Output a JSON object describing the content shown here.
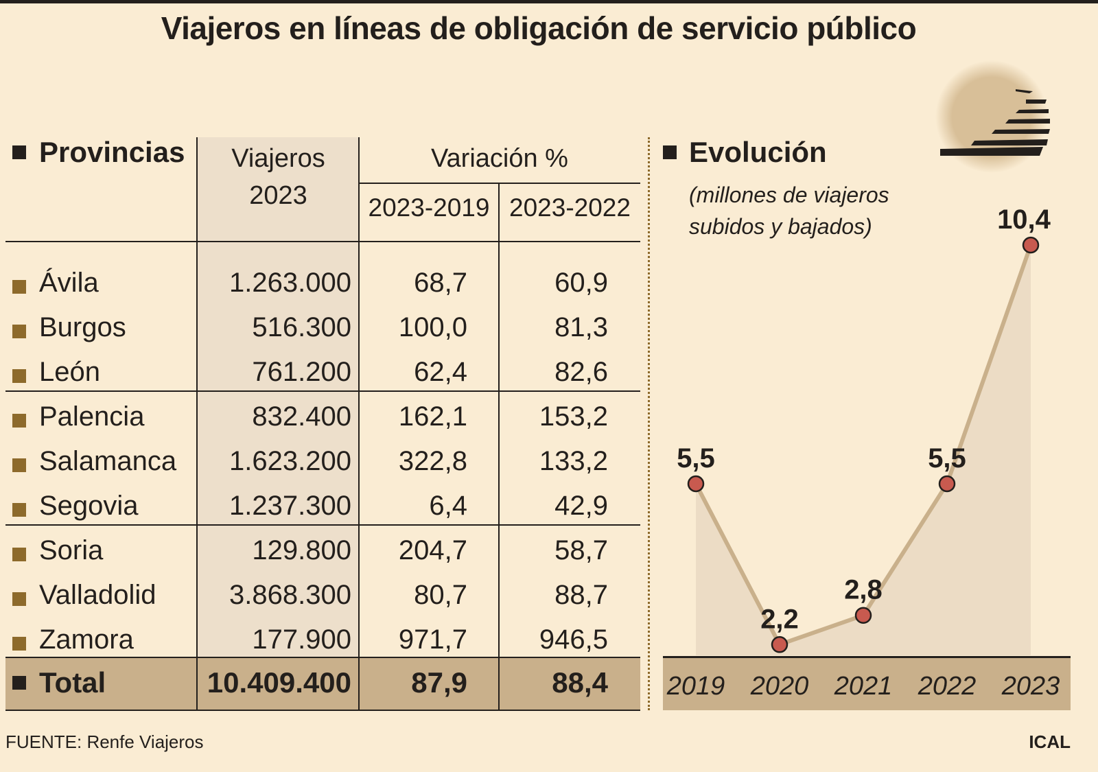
{
  "title": "Viajeros en líneas de obligación de servicio público",
  "table": {
    "headers": {
      "provincias": "Provincias",
      "viajeros": "Viajeros",
      "viajeros_year": "2023",
      "variacion": "Variación %",
      "var1": "2023-2019",
      "var2": "2023-2022"
    },
    "rows": [
      {
        "provincia": "Ávila",
        "viajeros": "1.263.000",
        "var1": "68,7",
        "var2": "60,9"
      },
      {
        "provincia": "Burgos",
        "viajeros": "516.300",
        "var1": "100,0",
        "var2": "81,3"
      },
      {
        "provincia": "León",
        "viajeros": "761.200",
        "var1": "62,4",
        "var2": "82,6"
      },
      {
        "provincia": "Palencia",
        "viajeros": "832.400",
        "var1": "162,1",
        "var2": "153,2"
      },
      {
        "provincia": "Salamanca",
        "viajeros": "1.623.200",
        "var1": "322,8",
        "var2": "133,2"
      },
      {
        "provincia": "Segovia",
        "viajeros": "1.237.300",
        "var1": "6,4",
        "var2": "42,9"
      },
      {
        "provincia": "Soria",
        "viajeros": "129.800",
        "var1": "204,7",
        "var2": "58,7"
      },
      {
        "provincia": "Valladolid",
        "viajeros": "3.868.300",
        "var1": "80,7",
        "var2": "88,7"
      },
      {
        "provincia": "Zamora",
        "viajeros": "177.900",
        "var1": "971,7",
        "var2": "946,5"
      }
    ],
    "total": {
      "label": "Total",
      "viajeros": "10.409.400",
      "var1": "87,9",
      "var2": "88,4"
    }
  },
  "chart_data": {
    "type": "line",
    "title": "Evolución",
    "subtitle_line1": "(millones de viajeros",
    "subtitle_line2": "subidos y bajados)",
    "categories": [
      "2019",
      "2020",
      "2021",
      "2022",
      "2023"
    ],
    "values": [
      5.5,
      2.2,
      2.8,
      5.5,
      10.4
    ],
    "labels": [
      "5,5",
      "2,2",
      "2,8",
      "5,5",
      "10,4"
    ],
    "area_fill": true,
    "colors": {
      "line": "#c9b08b",
      "area": "#ecdcc5",
      "marker": "#c85a4f",
      "band": "#c9b08b"
    }
  },
  "source": "FUENTE: Renfe Viajeros",
  "credit": "ICAL",
  "logo_icon": "striped-sun-logo"
}
